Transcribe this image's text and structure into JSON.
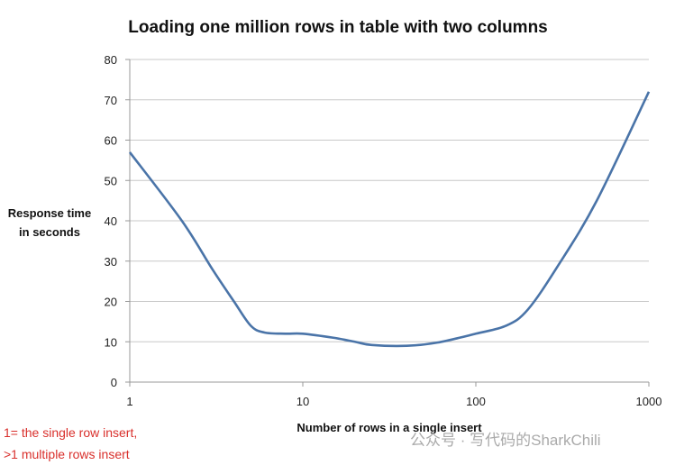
{
  "chart_data": {
    "type": "line",
    "title": "Loading one million rows in table with two columns",
    "xlabel": "Number of rows in a single insert",
    "ylabel": [
      "Response time",
      "in seconds"
    ],
    "xscale": "log",
    "xlim": [
      1,
      1000
    ],
    "ylim": [
      0,
      80
    ],
    "xticks": [
      1,
      10,
      100,
      1000
    ],
    "xtick_labels": [
      "1",
      "10",
      "100",
      "1000"
    ],
    "yticks": [
      0,
      10,
      20,
      30,
      40,
      50,
      60,
      70,
      80
    ],
    "grid": true,
    "series": [
      {
        "name": "Response time",
        "color": "#4a74a8",
        "x": [
          1,
          2,
          3,
          4,
          5,
          6,
          8,
          10,
          15,
          20,
          25,
          40,
          60,
          100,
          150,
          200,
          300,
          500,
          1000
        ],
        "y": [
          57,
          40,
          28,
          20,
          14,
          12.3,
          12,
          12,
          11,
          10,
          9.2,
          9,
          9.8,
          12,
          14,
          18,
          29,
          45,
          72
        ]
      }
    ],
    "annotations": [
      "1= the single row  insert,",
      ">1 multiple rows insert"
    ]
  },
  "watermark": "公众号 · 写代码的SharkChili"
}
